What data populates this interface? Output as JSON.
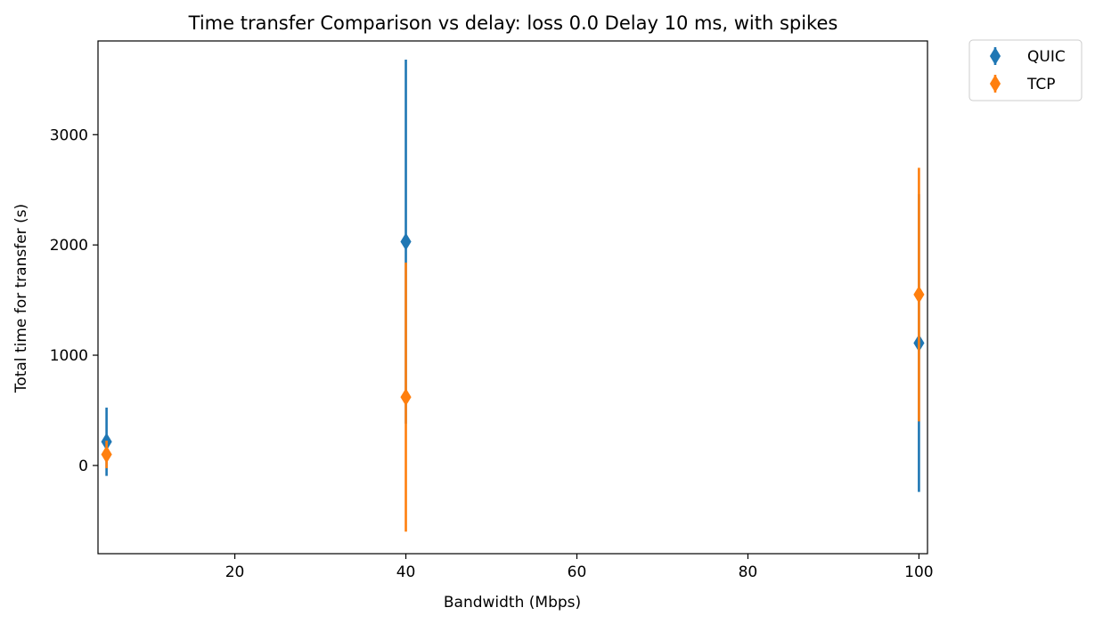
{
  "chart_data": {
    "type": "scatter",
    "title": "Time transfer Comparison vs delay: loss 0.0 Delay 10 ms, with spikes",
    "xlabel": "Bandwidth (Mbps)",
    "ylabel": "Total time for transfer (s)",
    "xlim": [
      4,
      101
    ],
    "ylim": [
      -800,
      3850
    ],
    "xticks": [
      20,
      40,
      60,
      80,
      100
    ],
    "yticks": [
      0,
      1000,
      2000,
      3000
    ],
    "grid": false,
    "legend_position": "outside-top-right",
    "marker": "thin_diamond",
    "series": [
      {
        "name": "QUIC",
        "color": "#1f77b4",
        "points": [
          {
            "x": 5,
            "y": 215,
            "err_low": -95,
            "err_high": 525
          },
          {
            "x": 40,
            "y": 2030,
            "err_low": 380,
            "err_high": 3680
          },
          {
            "x": 100,
            "y": 1110,
            "err_low": -240,
            "err_high": 2460
          }
        ]
      },
      {
        "name": "TCP",
        "color": "#ff7f0e",
        "points": [
          {
            "x": 5,
            "y": 100,
            "err_low": -25,
            "err_high": 225
          },
          {
            "x": 40,
            "y": 620,
            "err_low": -600,
            "err_high": 1840
          },
          {
            "x": 100,
            "y": 1550,
            "err_low": 400,
            "err_high": 2700
          }
        ]
      }
    ]
  }
}
